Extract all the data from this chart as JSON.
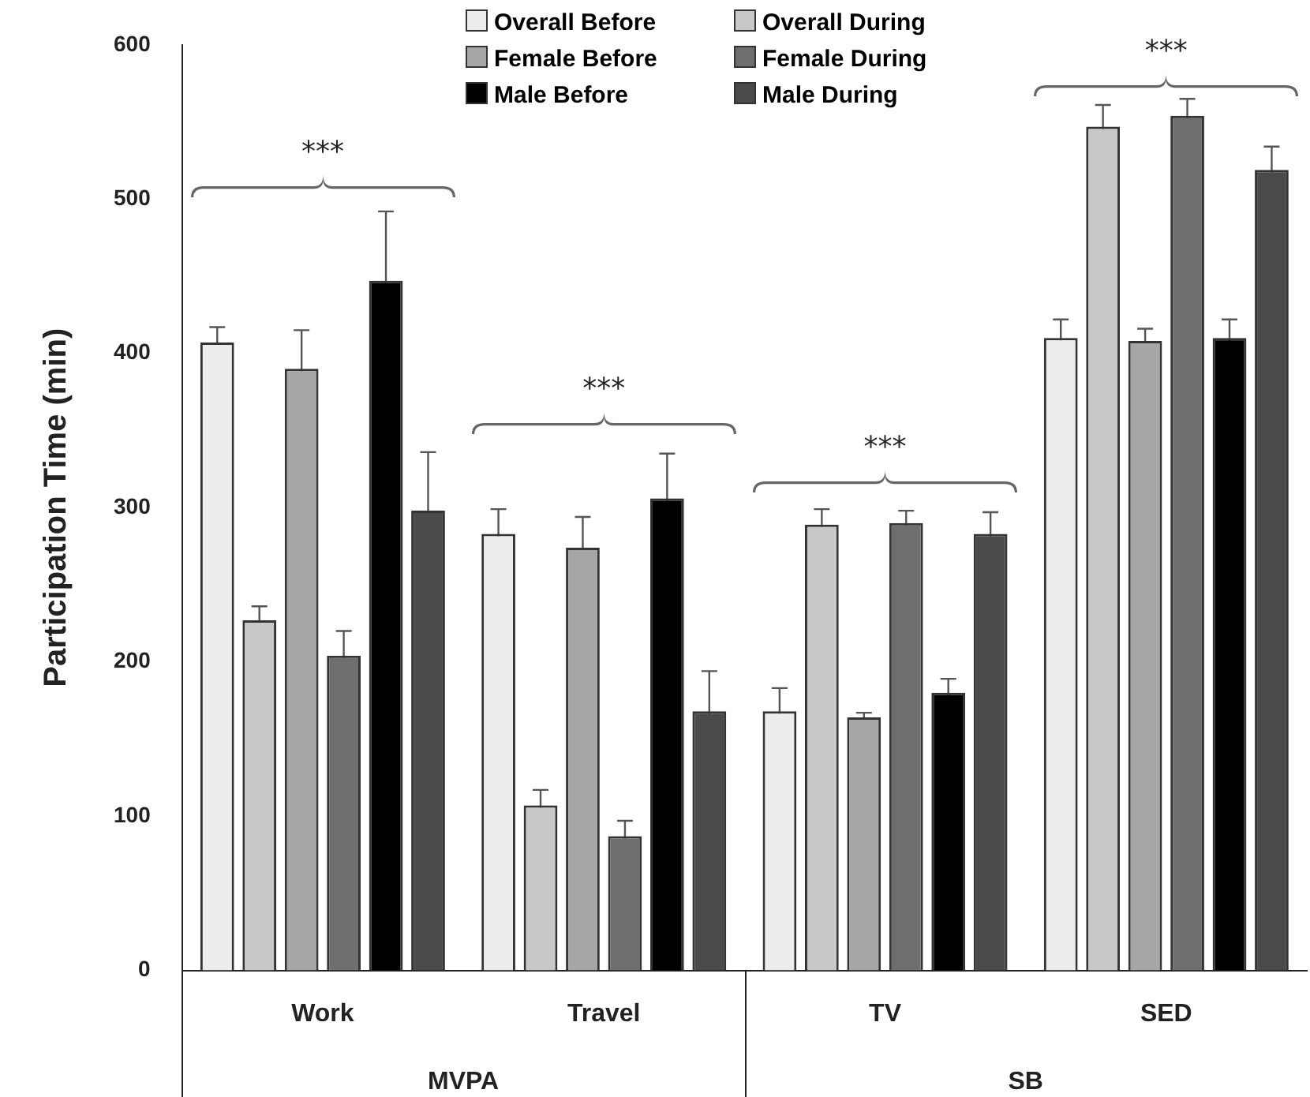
{
  "chart_data": {
    "type": "bar",
    "ylabel": "Participation Time (min)",
    "categories": [
      "Work",
      "Travel",
      "TV",
      "SED"
    ],
    "series": [
      {
        "name": "Overall Before",
        "color": "#ececec",
        "values": [
          407,
          283,
          168,
          410
        ],
        "errors": [
          10,
          16,
          15,
          12
        ]
      },
      {
        "name": "Overall During",
        "color": "#c8c8c8",
        "values": [
          227,
          107,
          289,
          547
        ],
        "errors": [
          9,
          10,
          10,
          14
        ]
      },
      {
        "name": "Female Before",
        "color": "#a6a6a6",
        "values": [
          390,
          274,
          164,
          408
        ],
        "errors": [
          25,
          20,
          3,
          8
        ]
      },
      {
        "name": "Female During",
        "color": "#6e6e6e",
        "values": [
          204,
          87,
          290,
          554
        ],
        "errors": [
          16,
          10,
          8,
          11
        ]
      },
      {
        "name": "Male Before",
        "color": "#000000",
        "values": [
          447,
          306,
          180,
          410
        ],
        "errors": [
          45,
          29,
          9,
          12
        ]
      },
      {
        "name": "Male During",
        "color": "#4a4a4a",
        "values": [
          298,
          168,
          283,
          519
        ],
        "errors": [
          38,
          26,
          14,
          15
        ]
      }
    ],
    "ylim": [
      0,
      600
    ],
    "yticks": [
      0,
      100,
      200,
      300,
      400,
      500,
      600
    ],
    "grid": false,
    "legend": "top",
    "annotations": [
      "***",
      "***",
      "***",
      "***",
      "MVPA",
      "SB"
    ]
  }
}
